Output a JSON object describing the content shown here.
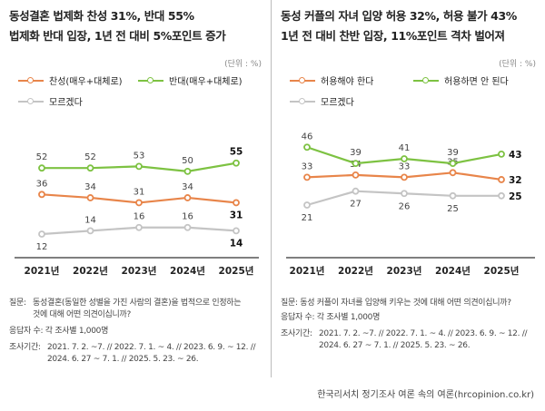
{
  "left": {
    "title": "동성결혼 법제화 찬성 31%, 반대 55%",
    "subtitle": "법제화 반대 입장, 1년 전 대비 5%포인트 증가",
    "unit": "(단위 : %)",
    "legend": [
      "찬성(매우+대체로)",
      "반대(매우+대체로)",
      "모르겠다"
    ],
    "question_label": "질문:",
    "question": [
      "동성결혼(동일한 성별을 가진 사람의 결혼)을 법적으로 인정하는",
      "것에 대해 어떤 의견이십니까?"
    ],
    "sample": "응답자 수: 각 조사별 1,000명",
    "period_label": "조사기간:",
    "period": [
      "2021. 7. 2. ~7. // 2022. 7. 1. ~ 4. // 2023. 6. 9. ~ 12. //",
      "2024. 6. 27 ~ 7. 1. // 2025. 5. 23. ~ 26."
    ]
  },
  "right": {
    "title": "동성 커플의 자녀 입양 허용 32%, 허용 불가 43%",
    "subtitle": "1년 전 대비 찬반 입장, 11%포인트 격차 벌어져",
    "unit": "(단위 : %)",
    "legend": [
      "허용해야 한다",
      "허용하면 안 된다",
      "모르겠다"
    ],
    "question": "질문: 동성 커플이 자녀를 입양해 키우는 것에 대해 어떤 의견이십니까?",
    "sample": "응답자 수: 각 조사별 1,000명",
    "period_label": "조사기간:",
    "period": [
      "2021. 7. 2. ~7. // 2022. 7. 1. ~ 4. // 2023. 6. 9. ~ 12. //",
      "2024. 6. 27 ~ 7. 1. // 2025. 5. 23. ~ 26."
    ]
  },
  "footer": "한국리서치 정기조사 여론 속의 여론(hrcopinion.co.kr)",
  "colors": {
    "orange": "#E8854A",
    "green": "#7DC242",
    "gray": "#C4C4C4"
  },
  "chart_data": [
    {
      "type": "line",
      "title": "동성결혼 법제화 찬성 31%, 반대 55%",
      "categories": [
        "2021년",
        "2022년",
        "2023년",
        "2024년",
        "2025년"
      ],
      "series": [
        {
          "name": "찬성(매우+대체로)",
          "color": "#E8854A",
          "values": [
            36,
            34,
            31,
            34,
            31
          ]
        },
        {
          "name": "반대(매우+대체로)",
          "color": "#7DC242",
          "values": [
            52,
            52,
            53,
            50,
            55
          ]
        },
        {
          "name": "모르겠다",
          "color": "#C4C4C4",
          "values": [
            12,
            14,
            16,
            16,
            14
          ]
        }
      ],
      "grid": false,
      "legend": "top-left"
    },
    {
      "type": "line",
      "title": "동성 커플의 자녀 입양 허용 32%, 허용 불가 43%",
      "categories": [
        "2021년",
        "2022년",
        "2023년",
        "2024년",
        "2025년"
      ],
      "series": [
        {
          "name": "허용해야 한다",
          "color": "#E8854A",
          "values": [
            33,
            34,
            33,
            35,
            32
          ]
        },
        {
          "name": "허용하면 안 된다",
          "color": "#7DC242",
          "values": [
            46,
            39,
            41,
            39,
            43
          ]
        },
        {
          "name": "모르겠다",
          "color": "#C4C4C4",
          "values": [
            21,
            27,
            26,
            25,
            25
          ]
        }
      ],
      "grid": false,
      "legend": "top-left"
    }
  ]
}
